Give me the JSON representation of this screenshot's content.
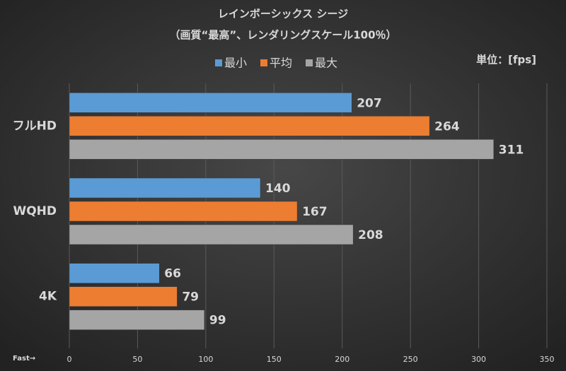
{
  "chart_data": {
    "type": "hbar",
    "title": "レインボーシックス シージ",
    "subtitle": "（画質“最高”、レンダリングスケール100％）",
    "unit_label": "単位：[fps]",
    "annotation": "Fast→",
    "categories": [
      "フルHD",
      "WQHD",
      "4K"
    ],
    "series": [
      {
        "name": "最小",
        "color": "#5b9bd5",
        "values": [
          207,
          140,
          66
        ]
      },
      {
        "name": "平均",
        "color": "#ed7d31",
        "values": [
          264,
          167,
          79
        ]
      },
      {
        "name": "最大",
        "color": "#a5a5a5",
        "values": [
          311,
          208,
          99
        ]
      }
    ],
    "xlim": [
      0,
      350
    ],
    "xticks": [
      0,
      50,
      100,
      150,
      200,
      250,
      300,
      350
    ],
    "grid": true,
    "legend": "top"
  }
}
